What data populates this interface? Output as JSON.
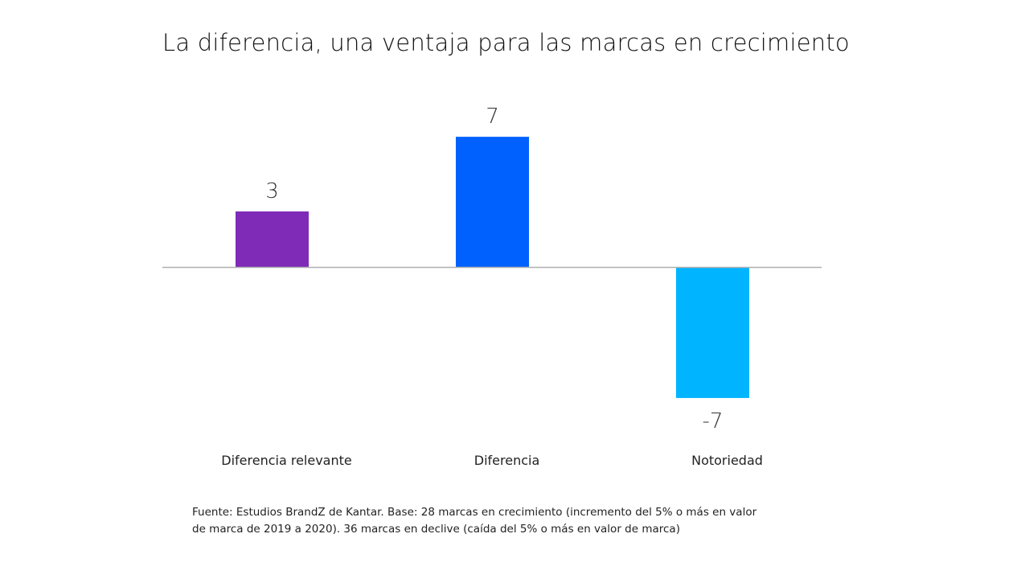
{
  "chart_data": {
    "type": "bar",
    "title": "La diferencia, una ventaja para las marcas en crecimiento",
    "categories": [
      "Diferencia relevante",
      "Diferencia",
      "Notoriedad"
    ],
    "values": [
      3,
      7,
      -7
    ],
    "data_labels": [
      "3",
      "7",
      "-7"
    ],
    "colors": [
      "#7f2bb8",
      "#0061ff",
      "#00b4ff"
    ],
    "axis_color": "#b0b0b0",
    "grid": false,
    "legend": "none",
    "xlabel": "",
    "ylabel": ""
  },
  "footnote": {
    "line1": "Fuente: Estudios BrandZ de Kantar. Base: 28 marcas en crecimiento (incremento del 5% o más en valor",
    "line2": "de marca de 2019 a 2020). 36 marcas en declive (caída del 5% o más en valor de marca)"
  }
}
